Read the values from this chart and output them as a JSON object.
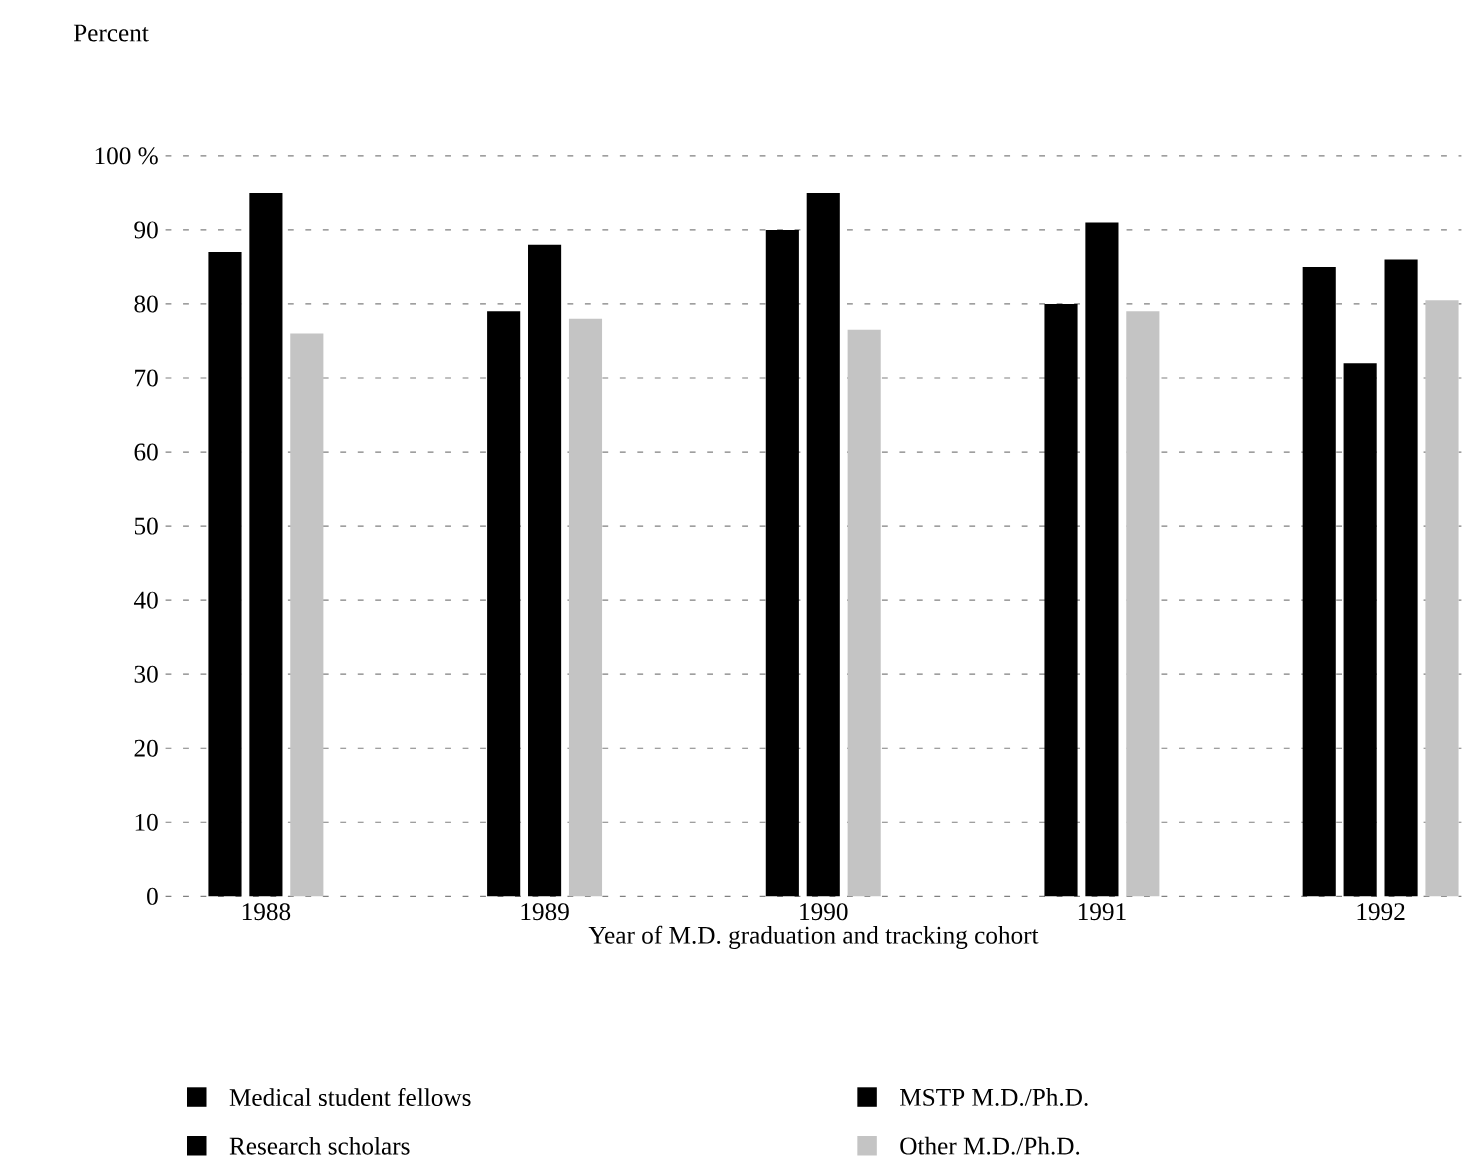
{
  "chart_data": {
    "type": "bar",
    "ylabel": "Percent",
    "xlabel": "Year of M.D. graduation and tracking cohort",
    "categories": [
      "1988",
      "1989",
      "1990",
      "1991",
      "1992"
    ],
    "series": [
      {
        "name": "Medical student fellows",
        "color": "#000000",
        "values": [
          null,
          null,
          null,
          null,
          85
        ]
      },
      {
        "name": "Research scholars",
        "color": "#000000",
        "values": [
          87,
          79,
          90,
          80,
          72
        ]
      },
      {
        "name": "MSTP M.D./Ph.D.",
        "color": "#000000",
        "values": [
          95,
          88,
          95,
          91,
          86
        ]
      },
      {
        "name": "Other M.D./Ph.D.",
        "color": "#c4c4c4",
        "values": [
          76,
          78,
          76.5,
          79,
          80.5
        ]
      }
    ],
    "ylim": [
      0,
      100
    ],
    "yticks": [
      0,
      10,
      20,
      30,
      40,
      50,
      60,
      70,
      80,
      90,
      {
        "value": 100,
        "label": "100 %"
      }
    ],
    "grid": "y",
    "legend": "bottom"
  }
}
